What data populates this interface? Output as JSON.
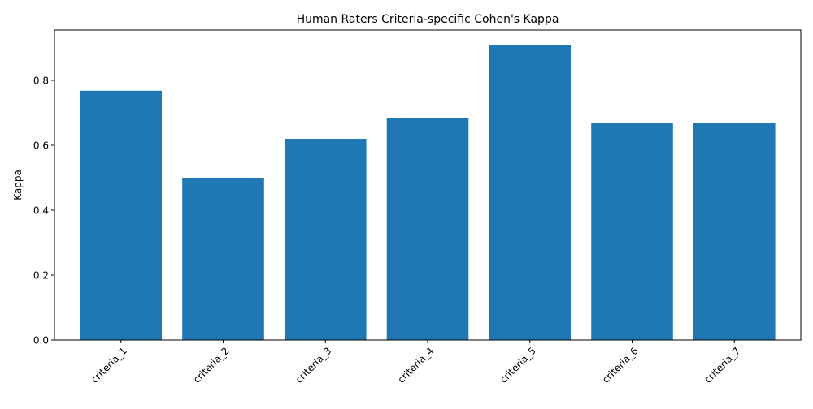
{
  "chart_data": {
    "type": "bar",
    "title": "Human Raters Criteria-specific Cohen's Kappa",
    "xlabel": "",
    "ylabel": "Kappa",
    "categories": [
      "criteria_1",
      "criteria_2",
      "criteria_3",
      "criteria_4",
      "criteria_5",
      "criteria_6",
      "criteria_7"
    ],
    "values": [
      0.768,
      0.5,
      0.62,
      0.685,
      0.908,
      0.67,
      0.668
    ],
    "ylim": [
      0,
      0.955
    ],
    "yticks": [
      0.0,
      0.2,
      0.4,
      0.6,
      0.8
    ],
    "ytick_labels": [
      "0.0",
      "0.2",
      "0.4",
      "0.6",
      "0.8"
    ],
    "bar_color": "#1f77b4",
    "grid": false,
    "xtick_rotation": "45 degrees"
  }
}
